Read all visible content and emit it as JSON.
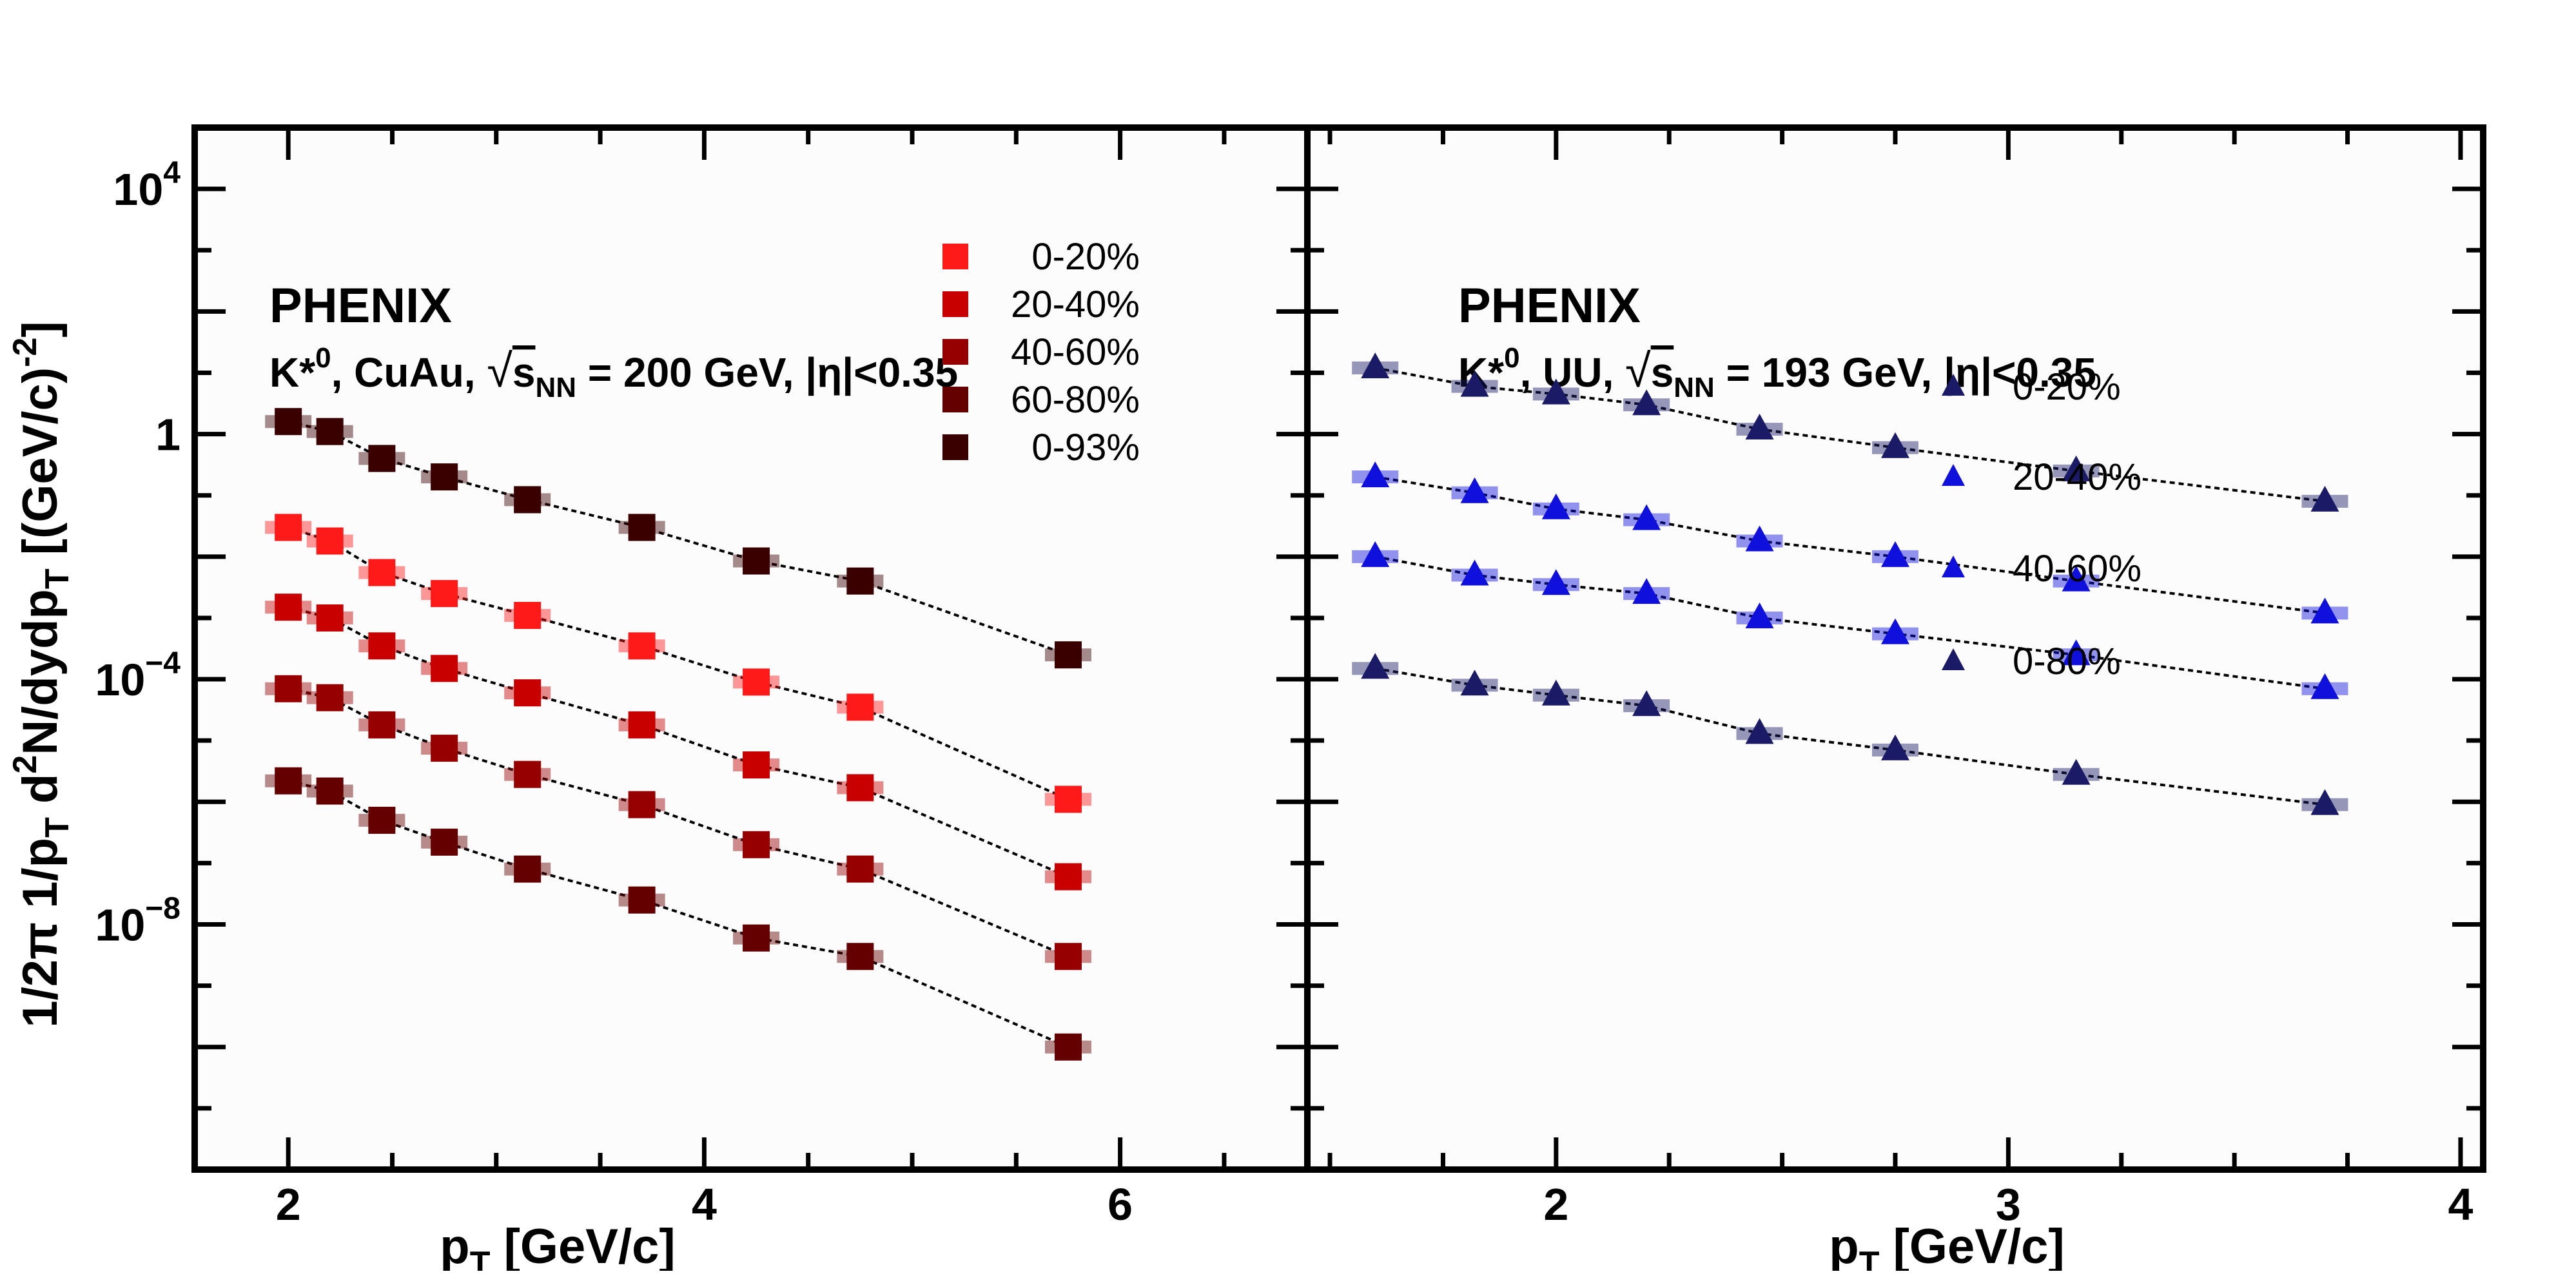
{
  "chart_data": [
    {
      "type": "scatter",
      "panel": "left",
      "experiment": "PHENIX",
      "system_label": "K*⁰, CuAu,  √s_NN = 200 GeV, |η|<0.35",
      "info_parts": {
        "particle": "K*",
        "sup": "0",
        "system": ", CuAu,  ",
        "sqrt": "√",
        "s": "s",
        "sub": "NN",
        "rest": " = 200 GeV, |η|<0.35"
      },
      "xlabel": "p_T [GeV/c]",
      "xlabel_main": "p",
      "xlabel_sub": "T",
      "xlabel_rest": " [GeV/c]",
      "ylabel": "1/2π 1/p_T d²N/dydp_T [(GeV/c)⁻²]",
      "ylabel_parts": {
        "a": "1/2π 1/p",
        "a_sub": "T",
        "b": " d",
        "b_sup": "2",
        "c": "N/dydp",
        "c_sub": "T",
        "d": " [(GeV/c)",
        "d_sup": "-2",
        "e": "]"
      },
      "yscale": "log",
      "xlim": [
        1.55,
        6.9
      ],
      "ylim": [
        1e-12,
        100000.0
      ],
      "xticks": [
        2,
        4,
        6
      ],
      "yticks": [
        {
          "value": 10000.0,
          "base": "10",
          "exp": "4"
        },
        {
          "value": 1,
          "base": "1",
          "exp": ""
        },
        {
          "value": 0.0001,
          "base": "10",
          "exp": "−4"
        },
        {
          "value": 1e-08,
          "base": "10",
          "exp": "−8"
        }
      ],
      "marker": "square",
      "legend_position": "top-center",
      "series": [
        {
          "name": "0-20%",
          "color": "#ff1a1a",
          "x": [
            2.0,
            2.2,
            2.45,
            2.75,
            3.15,
            3.7,
            4.25,
            4.75,
            5.75
          ],
          "y": [
            0.03,
            0.018,
            0.0055,
            0.0025,
            0.0011,
            0.00035,
            9e-05,
            3.5e-05,
            1.1e-06
          ]
        },
        {
          "name": "20-40%",
          "color": "#c80000",
          "x": [
            2.0,
            2.2,
            2.45,
            2.75,
            3.15,
            3.7,
            4.25,
            4.75,
            5.75
          ],
          "y": [
            0.0015,
            0.001,
            0.00035,
            0.00015,
            6e-05,
            1.8e-05,
            4e-06,
            1.7e-06,
            6e-08
          ]
        },
        {
          "name": "40-60%",
          "color": "#960000",
          "x": [
            2.0,
            2.2,
            2.45,
            2.75,
            3.15,
            3.7,
            4.25,
            4.75,
            5.75
          ],
          "y": [
            7e-05,
            5e-05,
            1.8e-05,
            7.5e-06,
            2.8e-06,
            9e-07,
            2e-07,
            8e-08,
            3e-09
          ]
        },
        {
          "name": "60-80%",
          "color": "#640000",
          "x": [
            2.0,
            2.2,
            2.45,
            2.75,
            3.15,
            3.7,
            4.25,
            4.75,
            5.75
          ],
          "y": [
            2.2e-06,
            1.5e-06,
            5e-07,
            2.2e-07,
            8e-08,
            2.5e-08,
            6e-09,
            3e-09,
            1e-10
          ]
        },
        {
          "name": "0-93%",
          "color": "#3a0000",
          "x": [
            2.0,
            2.2,
            2.45,
            2.75,
            3.15,
            3.7,
            4.25,
            4.75,
            5.75
          ],
          "y": [
            1.6,
            1.1,
            0.4,
            0.2,
            0.085,
            0.03,
            0.0085,
            0.004,
            0.00025
          ]
        }
      ],
      "legend": [
        "0-20%",
        "20-40%",
        "40-60%",
        "60-80%",
        "0-93%"
      ]
    },
    {
      "type": "scatter",
      "panel": "right",
      "experiment": "PHENIX",
      "system_label": "K*⁰, UU,  √s_NN = 193 GeV, |η|<0.35",
      "info_parts": {
        "particle": "K*",
        "sup": "0",
        "system": ", UU,  ",
        "sqrt": "√",
        "s": "s",
        "sub": "NN",
        "rest": " = 193 GeV, |η|<0.35"
      },
      "xlabel": "p_T [GeV/c]",
      "xlabel_main": "p",
      "xlabel_sub": "T",
      "xlabel_rest": " [GeV/c]",
      "yscale": "log",
      "xlim": [
        1.45,
        4.05
      ],
      "ylim": [
        1e-12,
        100000.0
      ],
      "xticks": [
        2,
        3,
        4
      ],
      "marker": "triangle",
      "series": [
        {
          "name": "0-20%",
          "color": "#1a1a66",
          "x": [
            1.6,
            1.82,
            2.0,
            2.2,
            2.45,
            2.75,
            3.15,
            3.7
          ],
          "y": [
            12.0,
            6.0,
            4.5,
            3.0,
            1.2,
            0.6,
            0.25,
            0.08
          ]
        },
        {
          "name": "20-40%",
          "color": "#1010dd",
          "x": [
            1.6,
            1.82,
            2.0,
            2.2,
            2.45,
            2.75,
            3.15,
            3.7
          ],
          "y": [
            0.2,
            0.11,
            0.06,
            0.04,
            0.018,
            0.01,
            0.004,
            0.0012
          ]
        },
        {
          "name": "40-60%",
          "color": "#1010dd",
          "x": [
            1.6,
            1.82,
            2.0,
            2.2,
            2.45,
            2.75,
            3.15,
            3.7
          ],
          "y": [
            0.01,
            0.005,
            0.0035,
            0.0025,
            0.001,
            0.00055,
            0.00025,
            7e-05
          ]
        },
        {
          "name": "0-80%",
          "color": "#1a1a66",
          "x": [
            1.6,
            1.82,
            2.0,
            2.2,
            2.45,
            2.75,
            3.15,
            3.7
          ],
          "y": [
            0.00015,
            8e-05,
            5.5e-05,
            3.7e-05,
            1.3e-05,
            7e-06,
            2.8e-06,
            9e-07
          ]
        }
      ],
      "legend": [
        "0-20%",
        "20-40%",
        "40-60%",
        "0-80%"
      ]
    }
  ]
}
